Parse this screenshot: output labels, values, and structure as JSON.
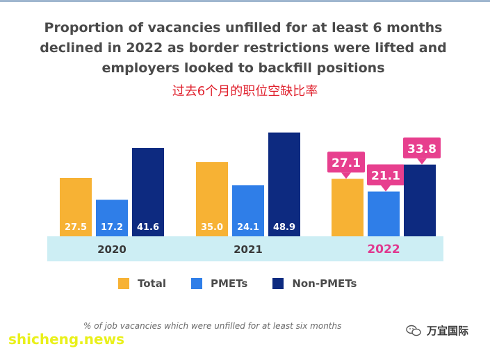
{
  "title_lines": [
    "Proportion of vacancies unfilled for at least 6 months",
    "declined in 2022 as border restrictions were lifted and",
    "employers looked to backfill positions"
  ],
  "subtitle_cn": "过去6个月的职位空缺比率",
  "chart_data": {
    "type": "bar",
    "categories": [
      "2020",
      "2021",
      "2022"
    ],
    "series": [
      {
        "name": "Total",
        "values": [
          27.5,
          35.0,
          27.1
        ],
        "color": "#f7b234"
      },
      {
        "name": "PMETs",
        "values": [
          17.2,
          24.1,
          21.1
        ],
        "color": "#2f7ee8"
      },
      {
        "name": "Non-PMETs",
        "values": [
          41.6,
          48.9,
          33.8
        ],
        "color": "#0d2a80"
      }
    ],
    "value_labels": [
      [
        "27.5",
        "17.2",
        "41.6"
      ],
      [
        "35.0",
        "24.1",
        "48.9"
      ],
      [
        "27.1",
        "21.1",
        "33.8"
      ]
    ],
    "ylim": [
      0,
      55
    ],
    "highlight_category_color": "#e0398f",
    "axis_band_color": "#cdeef4",
    "callout_color": "#e73f8e",
    "legend_position": "bottom"
  },
  "legend": [
    {
      "label": "Total",
      "color": "#f7b234"
    },
    {
      "label": "PMETs",
      "color": "#2f7ee8"
    },
    {
      "label": "Non-PMETs",
      "color": "#0d2a80"
    }
  ],
  "footnote": "% of job vacancies which were unfilled for at least six months",
  "watermark_left": "shicheng.news",
  "watermark_right": "万宜国际",
  "icons": {
    "watermark_icon": "wechat-icon"
  }
}
